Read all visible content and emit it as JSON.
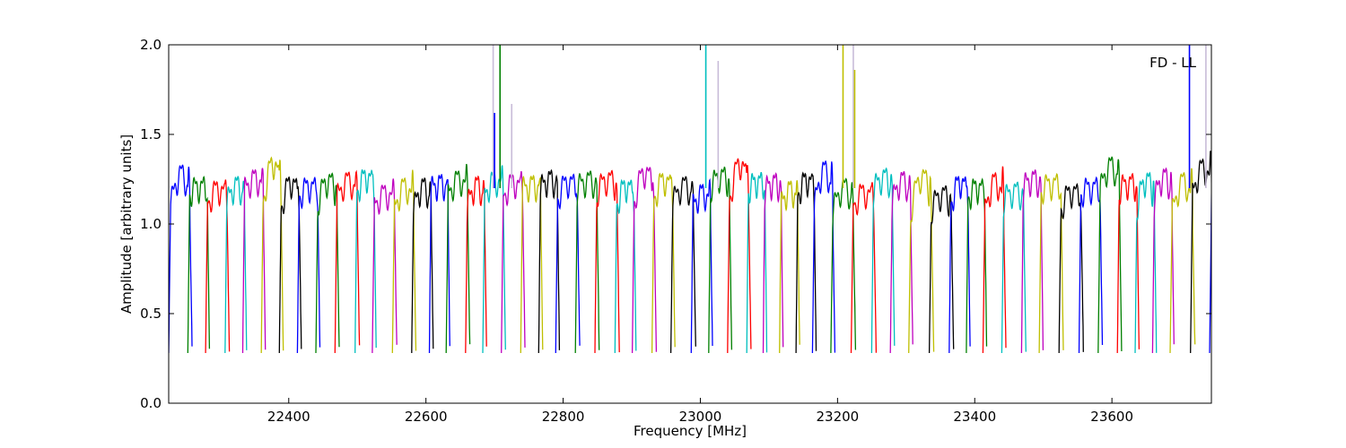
{
  "chart_data": {
    "type": "line",
    "title": "",
    "xlabel": "Frequency [MHz]",
    "ylabel": "Amplitude [arbitrary units]",
    "xlim": [
      22225,
      23745
    ],
    "ylim": [
      0.0,
      2.0
    ],
    "xticks": [
      22400,
      22600,
      22800,
      23000,
      23200,
      23400,
      23600
    ],
    "xtick_labels": [
      "22400",
      "22600",
      "22800",
      "23000",
      "23200",
      "23400",
      "23600"
    ],
    "yticks": [
      0.0,
      0.5,
      1.0,
      1.5,
      2.0
    ],
    "ytick_labels": [
      "0.0",
      "0.5",
      "1.0",
      "1.5",
      "2.0"
    ],
    "grid": false,
    "legend": "none",
    "annotation": "FD - LL",
    "colors": [
      "#0000ff",
      "#008000",
      "#ff0000",
      "#00bfbf",
      "#bf00bf",
      "#bfbf00",
      "#000000"
    ],
    "spike_color": "#c8bcd8",
    "channel_band": {
      "description_free": true,
      "first_start": 22225,
      "width": 32,
      "valley_min": 0.28,
      "passband_max": 1.35,
      "series_names_shown": false
    },
    "spikes": [
      {
        "x": 22698,
        "y": 2.0,
        "color": "#c8bcd8"
      },
      {
        "x": 22708,
        "y": 2.0,
        "color": "#008000"
      },
      {
        "x": 22725,
        "y": 1.67,
        "color": "#c8bcd8"
      },
      {
        "x": 22700,
        "y": 1.62,
        "color": "#0000ff"
      },
      {
        "x": 23008,
        "y": 2.0,
        "color": "#00bfbf"
      },
      {
        "x": 23026,
        "y": 1.91,
        "color": "#c8bcd8"
      },
      {
        "x": 23208,
        "y": 2.0,
        "color": "#bfbf00"
      },
      {
        "x": 23223,
        "y": 2.0,
        "color": "#c8bcd8"
      },
      {
        "x": 23225,
        "y": 1.86,
        "color": "#bfbf00"
      },
      {
        "x": 23713,
        "y": 2.0,
        "color": "#0000ff"
      },
      {
        "x": 23737,
        "y": 2.0,
        "color": "#c8bcd8"
      }
    ]
  }
}
